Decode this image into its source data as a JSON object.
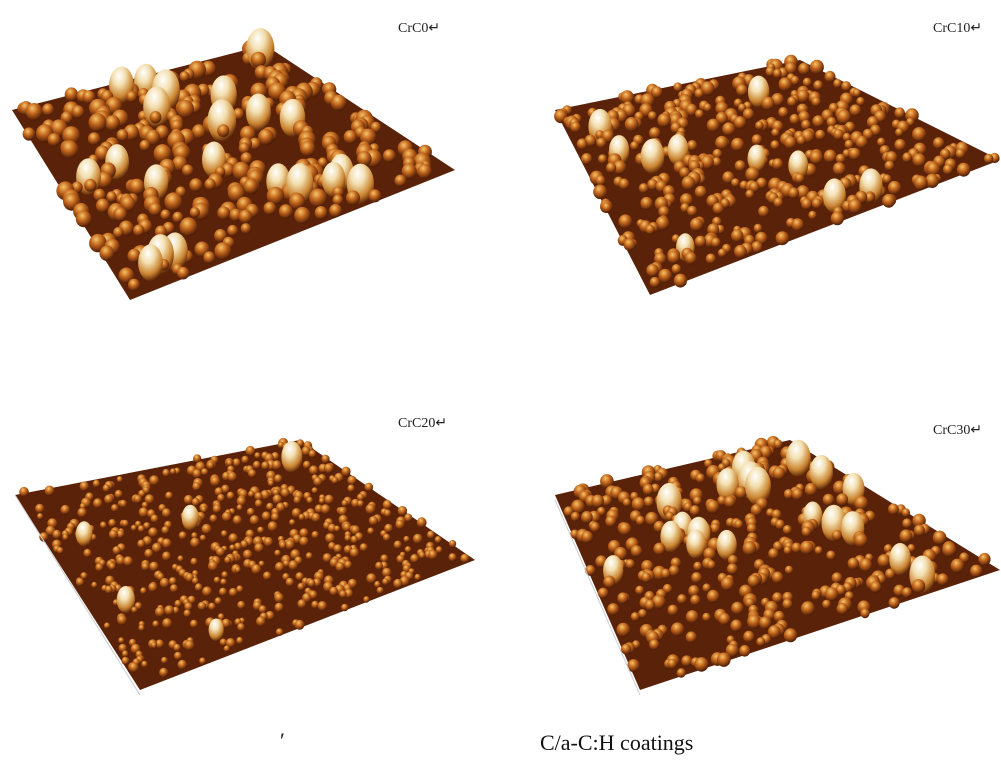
{
  "panels": [
    {
      "label": "CrC0↵"
    },
    {
      "label": "CrC10↵"
    },
    {
      "label": "CrC20↵"
    },
    {
      "label": "CrC30↵"
    }
  ],
  "caption": {
    "mark": "′",
    "text": "C/a-C:H coatings"
  }
}
